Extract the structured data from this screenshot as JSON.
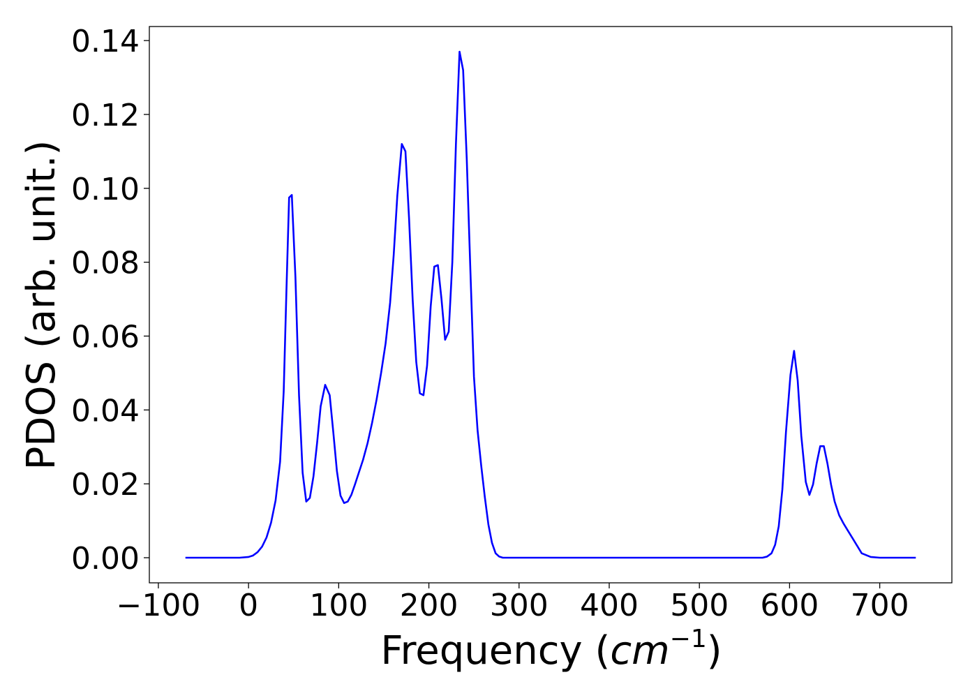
{
  "chart_data": {
    "type": "line",
    "title": "",
    "xlabel": {
      "prefix": "Frequency (",
      "italic": "cm",
      "superscript": "−1",
      "suffix": ")"
    },
    "ylabel": "PDOS (arb. unit.)",
    "xlim": [
      -110,
      780
    ],
    "ylim": [
      -0.0068,
      0.1438
    ],
    "xticks": [
      -100,
      0,
      100,
      200,
      300,
      400,
      500,
      600,
      700
    ],
    "xtick_labels": [
      "−100",
      "0",
      "100",
      "200",
      "300",
      "400",
      "500",
      "600",
      "700"
    ],
    "yticks": [
      0.0,
      0.02,
      0.04,
      0.06,
      0.08,
      0.1,
      0.12,
      0.14
    ],
    "ytick_labels": [
      "0.00",
      "0.02",
      "0.04",
      "0.06",
      "0.08",
      "0.10",
      "0.12",
      "0.14"
    ],
    "grid": false,
    "legend": "none",
    "series": [
      {
        "color": "#0000ff",
        "x": [
          -70,
          -10,
          0,
          5,
          10,
          15,
          20,
          25,
          30,
          35,
          39,
          42,
          45,
          48,
          52,
          56,
          60,
          64,
          68,
          72,
          76,
          80,
          85,
          90,
          94,
          98,
          102,
          106,
          110,
          114,
          118,
          122,
          127,
          132,
          137,
          142,
          147,
          152,
          157,
          161,
          165,
          170,
          174,
          178,
          182,
          186,
          190,
          194,
          198,
          202,
          206,
          210,
          214,
          218,
          222,
          226,
          230,
          234,
          238,
          242,
          246,
          250,
          254,
          258,
          262,
          266,
          270,
          274,
          278,
          282,
          290,
          300,
          400,
          500,
          570,
          575,
          580,
          584,
          588,
          592,
          596,
          601,
          605,
          609,
          613,
          618,
          622,
          626,
          630,
          634,
          638,
          642,
          646,
          650,
          655,
          660,
          665,
          670,
          675,
          680,
          690,
          700,
          740
        ],
        "y": [
          0.0,
          0.0,
          0.0002,
          0.0006,
          0.0015,
          0.003,
          0.0055,
          0.0095,
          0.0155,
          0.026,
          0.045,
          0.072,
          0.0975,
          0.0982,
          0.076,
          0.044,
          0.023,
          0.0152,
          0.0162,
          0.022,
          0.031,
          0.041,
          0.0468,
          0.044,
          0.034,
          0.0235,
          0.0168,
          0.0148,
          0.0152,
          0.017,
          0.0198,
          0.0228,
          0.0265,
          0.031,
          0.0365,
          0.0428,
          0.05,
          0.058,
          0.069,
          0.082,
          0.098,
          0.112,
          0.11,
          0.092,
          0.07,
          0.053,
          0.0445,
          0.044,
          0.052,
          0.068,
          0.0788,
          0.0792,
          0.07,
          0.059,
          0.0612,
          0.08,
          0.112,
          0.137,
          0.132,
          0.108,
          0.078,
          0.049,
          0.0345,
          0.025,
          0.0165,
          0.009,
          0.004,
          0.0012,
          0.0003,
          0.0,
          0.0,
          0.0,
          0.0,
          0.0,
          0.0,
          0.0003,
          0.0012,
          0.0035,
          0.0085,
          0.0185,
          0.034,
          0.0495,
          0.056,
          0.048,
          0.033,
          0.0205,
          0.017,
          0.0198,
          0.0255,
          0.0302,
          0.0302,
          0.0255,
          0.0198,
          0.0152,
          0.0115,
          0.0092,
          0.0072,
          0.0052,
          0.0032,
          0.0012,
          0.0002,
          0.0,
          0.0
        ]
      }
    ]
  }
}
